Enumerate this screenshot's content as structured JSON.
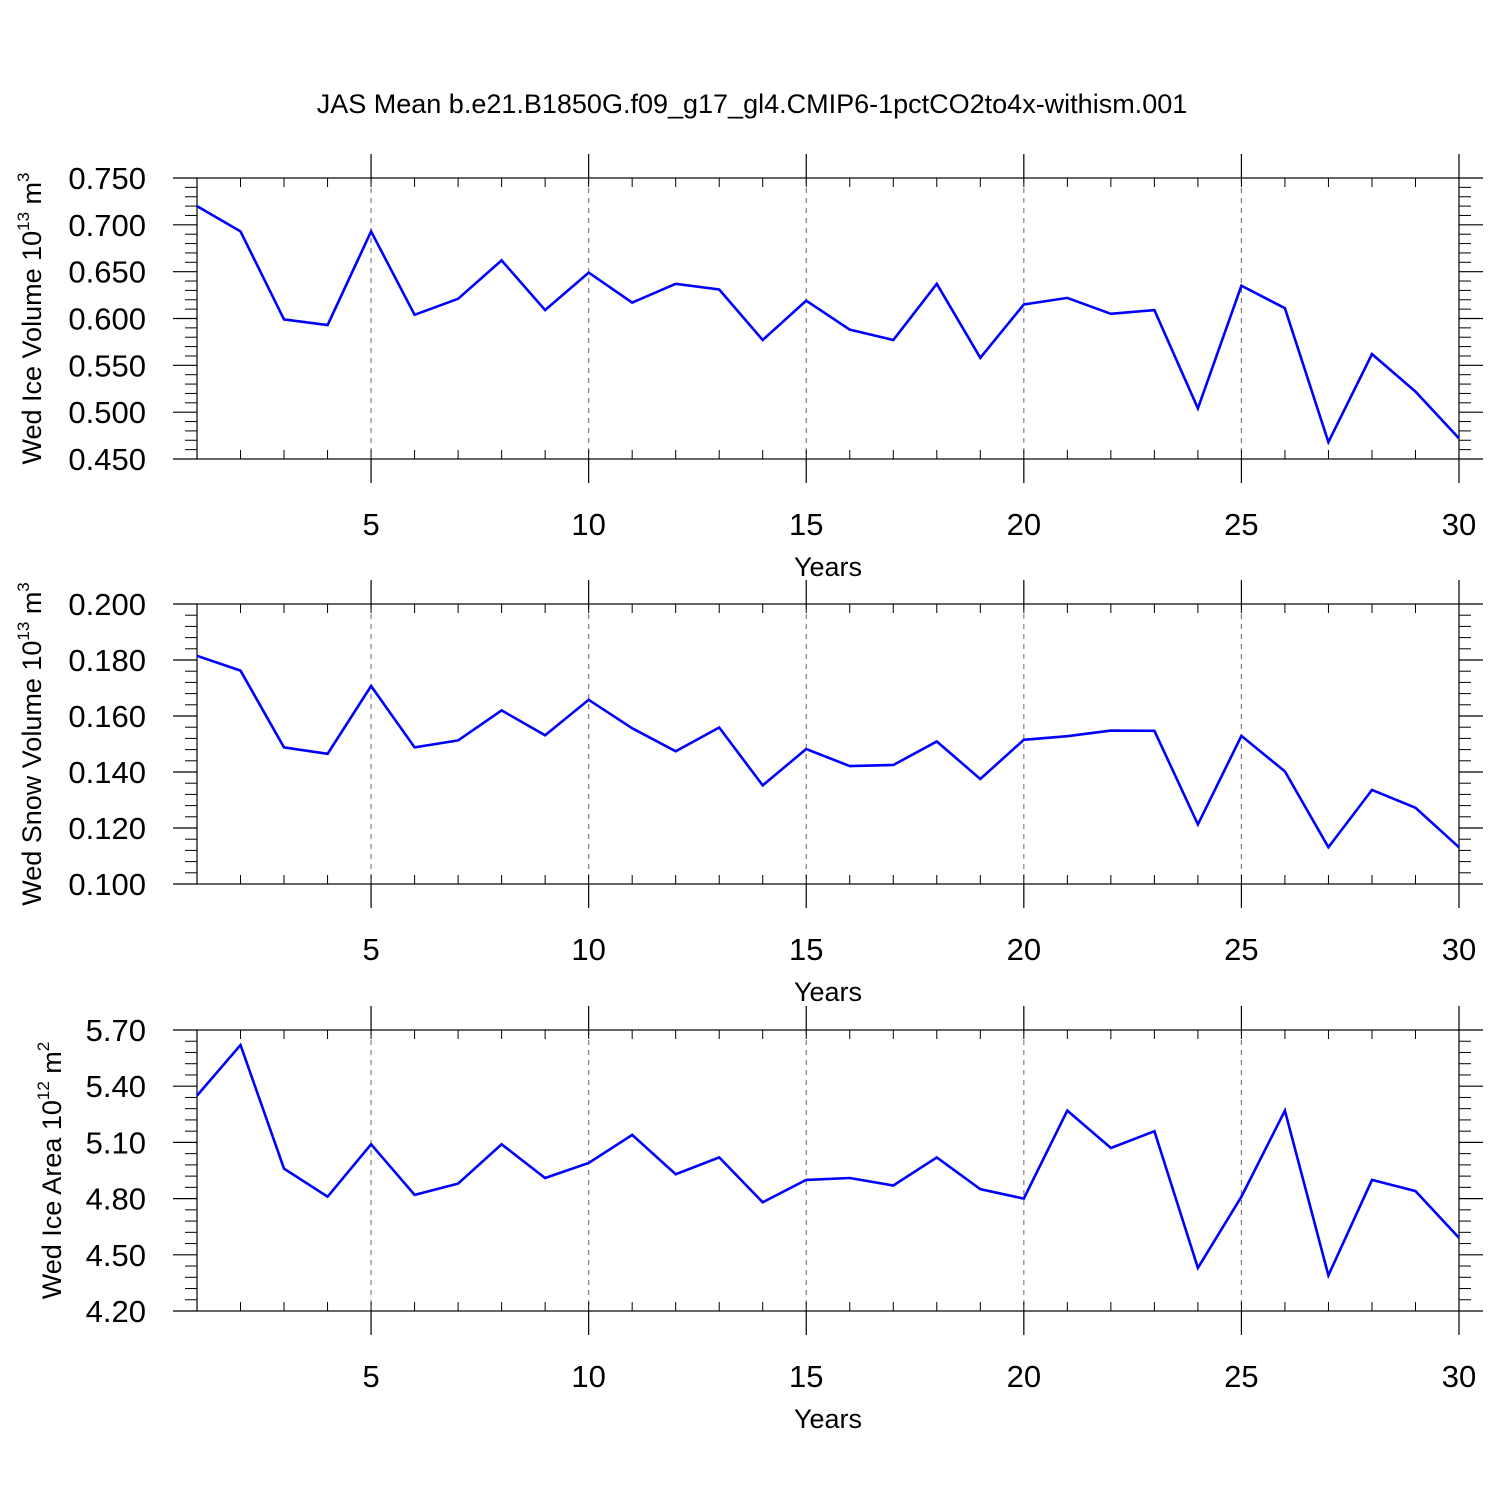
{
  "title": "JAS Mean b.e21.B1850G.f09_g17_gl4.CMIP6-1pctCO2to4x-withism.001",
  "colors": {
    "line": "#0000ff",
    "axis": "#000000",
    "grid": "#7f7f7f"
  },
  "chart_data": [
    {
      "type": "line",
      "xlabel": "Years",
      "ylabel": {
        "text": "Wed Ice Volume 10",
        "sup": "13",
        "unit": " m",
        "unit_sup": "3"
      },
      "xlim": [
        1,
        30
      ],
      "ylim": [
        0.45,
        0.75
      ],
      "grid": "vertical-dashed",
      "x_ticks": [
        5,
        10,
        15,
        20,
        25,
        30
      ],
      "y_ticks": [
        "0.450",
        "0.500",
        "0.550",
        "0.600",
        "0.650",
        "0.700",
        "0.750"
      ],
      "series": [
        {
          "x": [
            1,
            2,
            3,
            4,
            5,
            6,
            7,
            8,
            9,
            10,
            11,
            12,
            13,
            14,
            15,
            16,
            17,
            18,
            19,
            20,
            21,
            22,
            23,
            24,
            25,
            26,
            27,
            28,
            29,
            30
          ],
          "values": [
            0.72,
            0.693,
            0.599,
            0.593,
            0.693,
            0.604,
            0.621,
            0.662,
            0.609,
            0.649,
            0.617,
            0.637,
            0.631,
            0.577,
            0.619,
            0.588,
            0.577,
            0.637,
            0.558,
            0.615,
            0.622,
            0.605,
            0.609,
            0.504,
            0.635,
            0.611,
            0.468,
            0.562,
            0.522,
            0.472
          ]
        }
      ]
    },
    {
      "type": "line",
      "xlabel": "Years",
      "ylabel": {
        "text": "Wed Snow Volume 10",
        "sup": "13",
        "unit": " m",
        "unit_sup": "3"
      },
      "xlim": [
        1,
        30
      ],
      "ylim": [
        0.1,
        0.2
      ],
      "grid": "vertical-dashed",
      "x_ticks": [
        5,
        10,
        15,
        20,
        25,
        30
      ],
      "y_ticks": [
        "0.100",
        "0.120",
        "0.140",
        "0.160",
        "0.180",
        "0.200"
      ],
      "series": [
        {
          "x": [
            1,
            2,
            3,
            4,
            5,
            6,
            7,
            8,
            9,
            10,
            11,
            12,
            13,
            14,
            15,
            16,
            17,
            18,
            19,
            20,
            21,
            22,
            23,
            24,
            25,
            26,
            27,
            28,
            29,
            30
          ],
          "values": [
            0.1815,
            0.1762,
            0.1488,
            0.1465,
            0.1707,
            0.1488,
            0.1513,
            0.162,
            0.1531,
            0.1658,
            0.1556,
            0.1474,
            0.1559,
            0.1352,
            0.1482,
            0.1421,
            0.1425,
            0.1509,
            0.1375,
            0.1515,
            0.1528,
            0.1548,
            0.1547,
            0.1213,
            0.1529,
            0.1402,
            0.1131,
            0.1336,
            0.1272,
            0.1131
          ]
        }
      ]
    },
    {
      "type": "line",
      "xlabel": "Years",
      "ylabel": {
        "text": "Wed Ice Area 10",
        "sup": "12",
        "unit": " m",
        "unit_sup": "2"
      },
      "xlim": [
        1,
        30
      ],
      "ylim": [
        4.2,
        5.7
      ],
      "grid": "vertical-dashed",
      "x_ticks": [
        5,
        10,
        15,
        20,
        25,
        30
      ],
      "y_ticks": [
        "4.20",
        "4.50",
        "4.80",
        "5.10",
        "5.40",
        "5.70"
      ],
      "series": [
        {
          "x": [
            1,
            2,
            3,
            4,
            5,
            6,
            7,
            8,
            9,
            10,
            11,
            12,
            13,
            14,
            15,
            16,
            17,
            18,
            19,
            20,
            21,
            22,
            23,
            24,
            25,
            26,
            27,
            28,
            29,
            30
          ],
          "values": [
            5.35,
            5.62,
            4.96,
            4.81,
            5.09,
            4.82,
            4.88,
            5.09,
            4.91,
            4.99,
            5.14,
            4.93,
            5.02,
            4.78,
            4.9,
            4.91,
            4.87,
            5.02,
            4.85,
            4.8,
            5.27,
            5.07,
            5.16,
            4.43,
            4.81,
            5.27,
            4.39,
            4.9,
            4.84,
            4.59
          ]
        }
      ]
    }
  ]
}
